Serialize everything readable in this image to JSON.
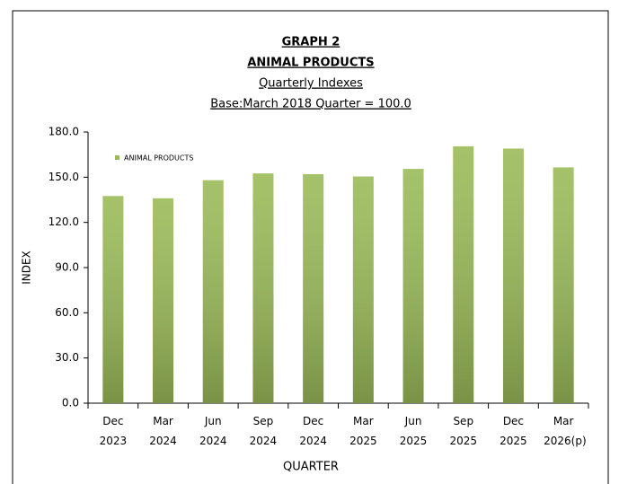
{
  "chart_data": {
    "type": "bar",
    "title": "GRAPH 2",
    "subtitle": [
      "ANIMAL PRODUCTS",
      "Quarterly Indexes",
      "Base:March 2018 Quarter = 100.0"
    ],
    "x_label": "QUARTER",
    "y_label": "INDEX",
    "categories": [
      "Dec 2023",
      "Mar 2024",
      "Jun 2024",
      "Sep 2024",
      "Dec 2024",
      "Mar 2025",
      "Jun 2025",
      "Sep 2025",
      "Dec 2025",
      "Mar 2026(p)"
    ],
    "series": [
      {
        "name": "ANIMAL PRODUCTS",
        "color": "#9bbb59",
        "values": [
          137.5,
          136,
          148,
          152.5,
          152,
          150.5,
          155.5,
          170.5,
          169,
          156.5
        ]
      }
    ],
    "ylim": [
      0,
      180
    ],
    "yticks": [
      {
        "value": 0,
        "label": "0.0"
      },
      {
        "value": 30,
        "label": "30.0"
      },
      {
        "value": 60,
        "label": "60.0"
      },
      {
        "value": 90,
        "label": "90.0"
      },
      {
        "value": 120,
        "label": "120.0"
      },
      {
        "value": 150,
        "label": "150.0"
      },
      {
        "value": 180,
        "label": "180.0"
      }
    ],
    "legend": "top-left",
    "grid": false
  }
}
